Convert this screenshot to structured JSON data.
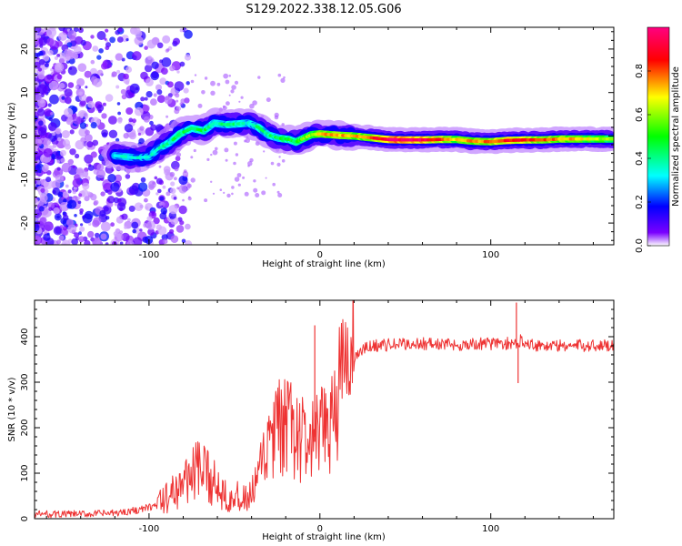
{
  "chart_data": [
    {
      "type": "heatmap",
      "title": "S129.2022.338.12.05.G06",
      "xlabel": "Height of straight line (km)",
      "ylabel": "Frequency (Hz)",
      "xlim": [
        -167,
        172
      ],
      "ylim": [
        -25,
        25
      ],
      "x_ticks": [
        -100,
        0,
        100
      ],
      "y_ticks": [
        -20,
        -10,
        0,
        10,
        20
      ],
      "colorbar": {
        "label": "Normalized spectral amplitude",
        "range": [
          0,
          1
        ],
        "ticks": [
          "0.0",
          "0.2",
          "0.4",
          "0.6",
          "0.8"
        ],
        "colors": [
          "#ffffff",
          "#7a00ff",
          "#0000ff",
          "#00ffff",
          "#00ff00",
          "#ffff00",
          "#ff0000",
          "#ff0080"
        ]
      },
      "ridge": {
        "description": "Dominant frequency trace vs. height",
        "x": [
          -120,
          -108,
          -100,
          -95,
          -88,
          -82,
          -75,
          -68,
          -62,
          -55,
          -48,
          -42,
          -36,
          -30,
          -24,
          -18,
          -14,
          -10,
          -5,
          0,
          10,
          20,
          30,
          40,
          50,
          60,
          70,
          80,
          90,
          100,
          110,
          120,
          130,
          140,
          150,
          160,
          172
        ],
        "freq": [
          -4.5,
          -5.0,
          -4.8,
          -3.0,
          -1.5,
          0.5,
          1.8,
          1.2,
          3.0,
          2.6,
          2.8,
          3.0,
          2.0,
          0.2,
          -0.5,
          -0.8,
          -1.4,
          -0.6,
          0.3,
          0.5,
          0.2,
          0.0,
          -0.4,
          -0.8,
          -0.9,
          -0.9,
          -0.8,
          -0.8,
          -1.2,
          -1.3,
          -1.0,
          -0.9,
          -0.9,
          -0.7,
          -0.7,
          -0.7,
          -0.7
        ],
        "amplitude": [
          0.35,
          0.35,
          0.3,
          0.35,
          0.4,
          0.45,
          0.4,
          0.45,
          0.4,
          0.4,
          0.4,
          0.35,
          0.4,
          0.4,
          0.45,
          0.5,
          0.45,
          0.55,
          0.6,
          0.7,
          0.75,
          0.7,
          0.8,
          0.95,
          1.0,
          0.95,
          0.85,
          0.7,
          0.75,
          0.8,
          0.85,
          0.85,
          0.8,
          0.75,
          0.7,
          0.65,
          0.6
        ]
      },
      "grid": false
    },
    {
      "type": "line",
      "xlabel": "Height of straight line (km)",
      "ylabel": "SNR (10 * v/v)",
      "xlim": [
        -167,
        172
      ],
      "ylim": [
        0,
        480
      ],
      "x_ticks": [
        -100,
        0,
        100
      ],
      "y_ticks": [
        0,
        100,
        200,
        300,
        400
      ],
      "series": [
        {
          "name": "SNR",
          "color": "#ee3333",
          "x": [
            -167,
            -140,
            -120,
            -105,
            -95,
            -88,
            -80,
            -74,
            -68,
            -62,
            -56,
            -50,
            -45,
            -40,
            -35,
            -30,
            -25,
            -20,
            -15,
            -10,
            -5,
            0,
            5,
            10,
            15,
            20,
            25,
            30,
            40,
            60,
            80,
            100,
            110,
            115,
            118,
            122,
            130,
            150,
            172
          ],
          "values": [
            10,
            10,
            12,
            20,
            30,
            50,
            80,
            105,
            100,
            80,
            60,
            50,
            40,
            50,
            100,
            160,
            190,
            200,
            190,
            170,
            165,
            175,
            210,
            270,
            320,
            355,
            370,
            380,
            382,
            385,
            382,
            385,
            385,
            380,
            395,
            385,
            380,
            380,
            382
          ]
        }
      ],
      "spikes": [
        {
          "x": 115,
          "value": 475
        },
        {
          "x": -3,
          "value": 425
        },
        {
          "x": 116,
          "value": 298
        }
      ],
      "grid": false
    }
  ]
}
